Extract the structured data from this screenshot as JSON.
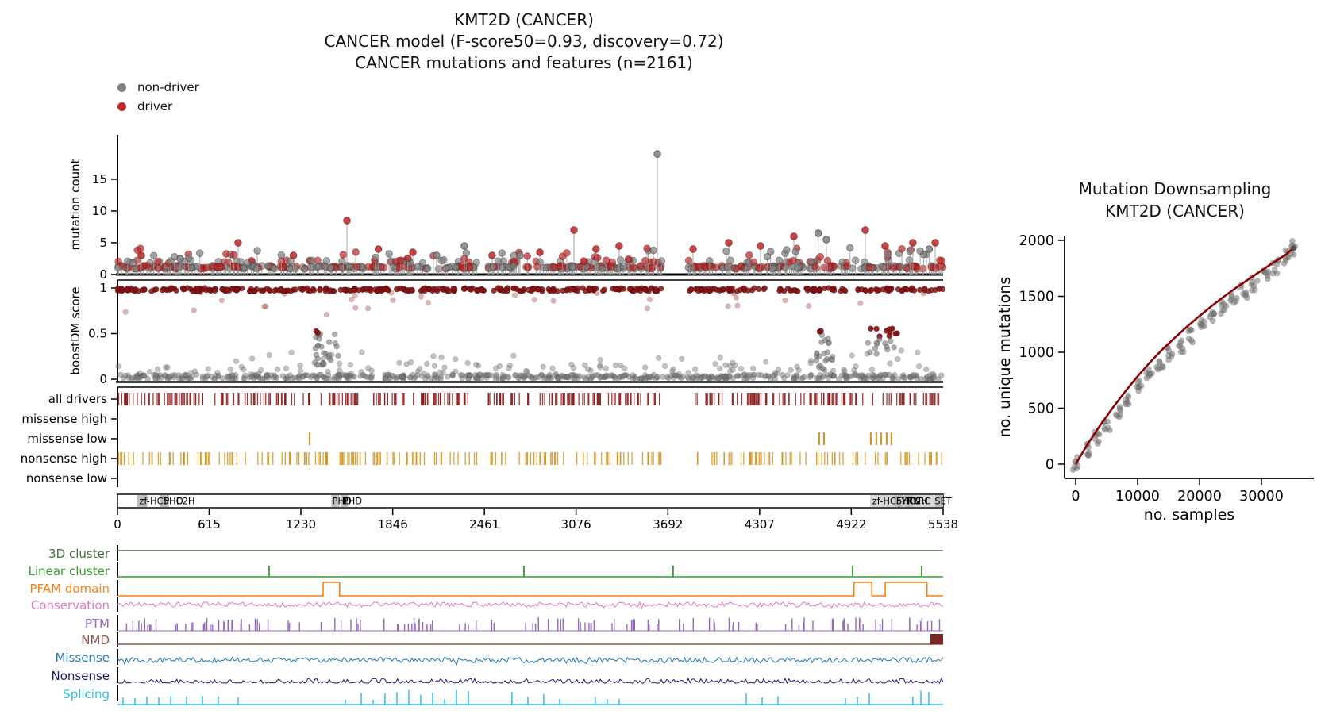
{
  "title": {
    "line1": "KMT2D (CANCER)",
    "line2": "CANCER model (F-score50=0.93, discovery=0.72)",
    "line3": "CANCER mutations and features (n=2161)"
  },
  "legend": {
    "items": [
      {
        "label": "non-driver",
        "color": "#808080"
      },
      {
        "label": "driver",
        "color": "#bf2626"
      }
    ]
  },
  "colors": {
    "driver": "#bf2626",
    "driver_edge": "#7f1616",
    "nondriver": "#7f7f7f",
    "nondriver_edge": "#4a4a4a",
    "band_red": "#8b1111",
    "track_red": "#8b1a1a",
    "track_orange": "#d4921a",
    "axis": "#000000",
    "domain_box_light": "#d6d6d6",
    "domain_box_dark": "#bdbdbd",
    "nmd_block": "#7a2727",
    "curve_red": "#8b0000",
    "downsample_dot": "#7a7a7a"
  },
  "chart_data": [
    {
      "id": "mutation_needle",
      "type": "scatter",
      "ylabel": "mutation count",
      "yticks": [
        0,
        5,
        10,
        15
      ],
      "ylim": [
        0,
        21
      ],
      "xlim": [
        0,
        5538
      ],
      "classes": {
        "d": "driver",
        "n": "non-driver"
      },
      "peaks": [
        [
          160,
          3,
          "d"
        ],
        [
          420,
          2.5,
          "n"
        ],
        [
          809,
          5,
          "d"
        ],
        [
          1180,
          3,
          "d"
        ],
        [
          1539,
          8.5,
          "d"
        ],
        [
          1750,
          4,
          "d"
        ],
        [
          1981,
          3.5,
          "d"
        ],
        [
          2140,
          3,
          "n"
        ],
        [
          2327,
          4.5,
          "n"
        ],
        [
          2513,
          3,
          "d"
        ],
        [
          2700,
          3,
          "n"
        ],
        [
          2833,
          3.5,
          "d"
        ],
        [
          3062,
          7,
          "d"
        ],
        [
          3210,
          4,
          "d"
        ],
        [
          3365,
          4.5,
          "d"
        ],
        [
          3621,
          19,
          "n"
        ],
        [
          3861,
          4,
          "d"
        ],
        [
          4100,
          5,
          "d"
        ],
        [
          4313,
          4.5,
          "d"
        ],
        [
          4537,
          6,
          "d"
        ],
        [
          4700,
          6.5,
          "n"
        ],
        [
          4755,
          5.5,
          "n"
        ],
        [
          5016,
          7,
          "d"
        ],
        [
          5149,
          4.5,
          "d"
        ],
        [
          5335,
          5,
          "d"
        ],
        [
          5445,
          4,
          "n"
        ],
        [
          5485,
          5,
          "d"
        ]
      ],
      "baseline": {
        "n": 520,
        "medium_n": 70,
        "driver_fraction": 0.45,
        "seed": 7
      },
      "gaps": [
        [
          3655,
          3830
        ],
        [
          2410,
          2480
        ]
      ]
    },
    {
      "id": "boostdm_score",
      "type": "scatter",
      "ylabel": "boostDM score",
      "yticks": [
        0,
        0.5,
        1
      ],
      "ylim": [
        0,
        1
      ],
      "bands": [
        {
          "score_range": [
            0.965,
            1.0
          ],
          "class": "d",
          "n": 430,
          "opacity": 0.85
        },
        {
          "score_range": [
            0.0,
            0.05
          ],
          "class": "n",
          "n": 520,
          "opacity": 0.5
        },
        {
          "score_range": [
            0.05,
            0.16
          ],
          "class": "n",
          "n": 90,
          "opacity": 0.45
        }
      ],
      "sparse": [
        {
          "score_range": [
            0.7,
            0.95
          ],
          "class": "d",
          "n": 30,
          "opacity": 0.3
        },
        {
          "score_range": [
            0.1,
            0.32
          ],
          "class": "n",
          "n": 40,
          "opacity": 0.45
        }
      ],
      "clusters": [
        {
          "x": [
            1310,
            1480
          ],
          "scores": [
            0.12,
            0.52
          ],
          "class": "n",
          "n": 26
        },
        {
          "x": [
            1320,
            1400
          ],
          "scores": [
            0.5,
            0.55
          ],
          "class": "d",
          "n": 2
        },
        {
          "x": [
            4680,
            4800
          ],
          "scores": [
            0.1,
            0.5
          ],
          "class": "n",
          "n": 22
        },
        {
          "x": [
            4710,
            4760
          ],
          "scores": [
            0.5,
            0.54
          ],
          "class": "d",
          "n": 2
        },
        {
          "x": [
            5010,
            5240
          ],
          "scores": [
            0.46,
            0.56
          ],
          "class": "d",
          "n": 10
        },
        {
          "x": [
            5030,
            5230
          ],
          "scores": [
            0.25,
            0.45
          ],
          "class": "n",
          "n": 12
        }
      ],
      "seed": 11,
      "gaps": [
        [
          3655,
          3830
        ]
      ]
    },
    {
      "id": "driver_tracks",
      "type": "heatmap",
      "rows": [
        {
          "label": "all drivers",
          "color": "#8b1a1a",
          "n": 380,
          "seed": 3,
          "explicit": []
        },
        {
          "label": "missense high",
          "color": "#d4921a",
          "n": 0,
          "explicit": []
        },
        {
          "label": "missense low",
          "color": "#d4921a",
          "n": 0,
          "explicit": [
            1289,
            4707,
            4739,
            5053,
            5090,
            5122,
            5159,
            5191
          ]
        },
        {
          "label": "nonsense high",
          "color": "#d4921a",
          "n": 250,
          "seed": 5,
          "explicit": []
        },
        {
          "label": "nonsense low",
          "color": "#d4921a",
          "n": 0,
          "explicit": []
        }
      ],
      "gaps": [
        [
          3655,
          3830
        ],
        [
          2410,
          2480
        ]
      ]
    },
    {
      "id": "protein_domains",
      "type": "table",
      "xlim": [
        0,
        5538
      ],
      "xticks": [
        0,
        615,
        1230,
        1846,
        2461,
        3076,
        3692,
        4307,
        4922,
        5538
      ],
      "boxes": [
        {
          "start": 5048,
          "end": 5538,
          "dark": false
        },
        {
          "start": 130,
          "end": 200,
          "dark": true
        },
        {
          "start": 285,
          "end": 345,
          "dark": true
        },
        {
          "start": 1435,
          "end": 1488,
          "dark": true
        },
        {
          "start": 1495,
          "end": 1545,
          "dark": true
        },
        {
          "start": 5210,
          "end": 5268,
          "dark": true
        },
        {
          "start": 5283,
          "end": 5338,
          "dark": true
        },
        {
          "start": 5488,
          "end": 5538,
          "dark": true
        }
      ],
      "labels": [
        {
          "text": "zf-HC5HC2H",
          "pos": 135
        },
        {
          "text": "PHD",
          "pos": 300
        },
        {
          "text": "PHD",
          "pos": 1430
        },
        {
          "text": "PHD",
          "pos": 1500
        },
        {
          "text": "zf-HC5HC2H",
          "pos": 5052
        },
        {
          "text": "FYRN",
          "pos": 5212
        },
        {
          "text": "FYRC",
          "pos": 5288
        },
        {
          "text": "SET",
          "pos": 5470
        }
      ]
    },
    {
      "id": "feature_tracks",
      "type": "line",
      "rows": [
        {
          "label": "3D cluster",
          "color": "#44703c",
          "style": "flat"
        },
        {
          "label": "Linear cluster",
          "color": "#33a02c",
          "style": "spikes",
          "spikes": [
            1017,
            2726,
            3727,
            4931,
            5394
          ]
        },
        {
          "label": "PFAM domain",
          "color": "#ff7f0e",
          "style": "blocks",
          "blocks": [
            [
              1379,
              1490
            ],
            [
              4940,
              5060
            ],
            [
              5150,
              5430
            ]
          ]
        },
        {
          "label": "Conservation",
          "color": "#e377c2",
          "style": "noise",
          "seed": 21,
          "amp": 3.2
        },
        {
          "label": "PTM",
          "color": "#9467bd",
          "style": "bars",
          "seed": 13,
          "n": 130
        },
        {
          "label": "NMD",
          "color": "#8c564b",
          "style": "flat",
          "block": [
            5453,
            5538
          ]
        },
        {
          "label": "Missense",
          "color": "#1f77b4",
          "style": "noise",
          "seed": 23,
          "amp": 3.4
        },
        {
          "label": "Nonsense",
          "color": "#1b1b6e",
          "style": "noise_up",
          "seed": 27,
          "amp": 6
        },
        {
          "label": "Splicing",
          "color": "#2ec0ea",
          "style": "spikes_var",
          "seed": 29,
          "spikes": [
            37,
            117,
            197,
            277,
            357,
            463,
            570,
            676,
            809,
            1528,
            1635,
            1715,
            1794,
            1874,
            1954,
            2034,
            2114,
            2194,
            2274,
            2354,
            2646,
            2753,
            2859,
            2966,
            3205,
            3285,
            3365,
            4217,
            4324,
            4430,
            4883,
            4963,
            5043,
            5335,
            5389,
            5442
          ]
        }
      ]
    },
    {
      "id": "mutation_downsampling",
      "type": "scatter",
      "title_line1": "Mutation Downsampling",
      "title_line2": "KMT2D (CANCER)",
      "xlabel": "no. samples",
      "ylabel": "no. unique mutations",
      "xticks": [
        0,
        10000,
        20000,
        30000
      ],
      "yticks": [
        0,
        500,
        1000,
        1500,
        2000
      ],
      "xlim": [
        0,
        35500
      ],
      "ylim": [
        0,
        2000
      ],
      "curve_color": "#8b0000",
      "dot_color": "#7a7a7a",
      "curve": [
        [
          0,
          0
        ],
        [
          2000,
          185
        ],
        [
          4000,
          350
        ],
        [
          6000,
          505
        ],
        [
          8000,
          650
        ],
        [
          10000,
          785
        ],
        [
          12000,
          910
        ],
        [
          14000,
          1025
        ],
        [
          16000,
          1130
        ],
        [
          18000,
          1230
        ],
        [
          20000,
          1325
        ],
        [
          22000,
          1415
        ],
        [
          24000,
          1500
        ],
        [
          26000,
          1580
        ],
        [
          28000,
          1655
        ],
        [
          30000,
          1730
        ],
        [
          32000,
          1805
        ],
        [
          34000,
          1875
        ],
        [
          35200,
          1935
        ]
      ],
      "dot_clusters": [
        [
          0,
          5
        ],
        [
          1700,
          120
        ],
        [
          3400,
          245
        ],
        [
          5100,
          365
        ],
        [
          6800,
          480
        ],
        [
          8500,
          590
        ],
        [
          10200,
          695
        ],
        [
          11900,
          795
        ],
        [
          13600,
          890
        ],
        [
          15300,
          980
        ],
        [
          17000,
          1065
        ],
        [
          18700,
          1150
        ],
        [
          20400,
          1232
        ],
        [
          22100,
          1312
        ],
        [
          23800,
          1390
        ],
        [
          25500,
          1466
        ],
        [
          27200,
          1540
        ],
        [
          28900,
          1612
        ],
        [
          30600,
          1685
        ],
        [
          32300,
          1765
        ],
        [
          34000,
          1850
        ],
        [
          35200,
          1930
        ]
      ],
      "dots_per_cluster": 7,
      "seed": 31
    }
  ]
}
